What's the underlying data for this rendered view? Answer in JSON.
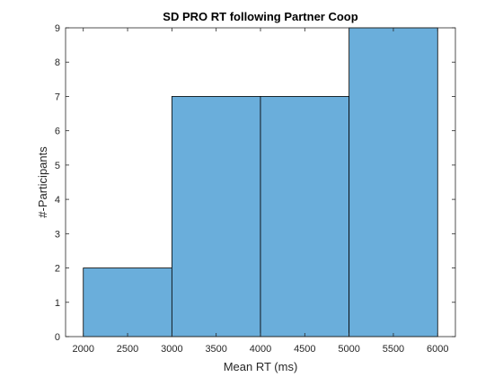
{
  "chart_data": {
    "type": "histogram",
    "title": "SD PRO RT following Partner Coop",
    "xlabel": "Mean RT (ms)",
    "ylabel": "#-Participants",
    "bin_edges": [
      2000,
      3000,
      4000,
      5000,
      6000
    ],
    "counts": [
      2,
      7,
      7,
      9
    ],
    "xlim": [
      1800,
      6200
    ],
    "ylim": [
      0,
      9
    ],
    "xticks": [
      2000,
      2500,
      3000,
      3500,
      4000,
      4500,
      5000,
      5500,
      6000
    ],
    "yticks": [
      0,
      1,
      2,
      3,
      4,
      5,
      6,
      7,
      8,
      9
    ],
    "bar_color": "#6aaedb",
    "edge_color": "#000000",
    "grid": false
  }
}
